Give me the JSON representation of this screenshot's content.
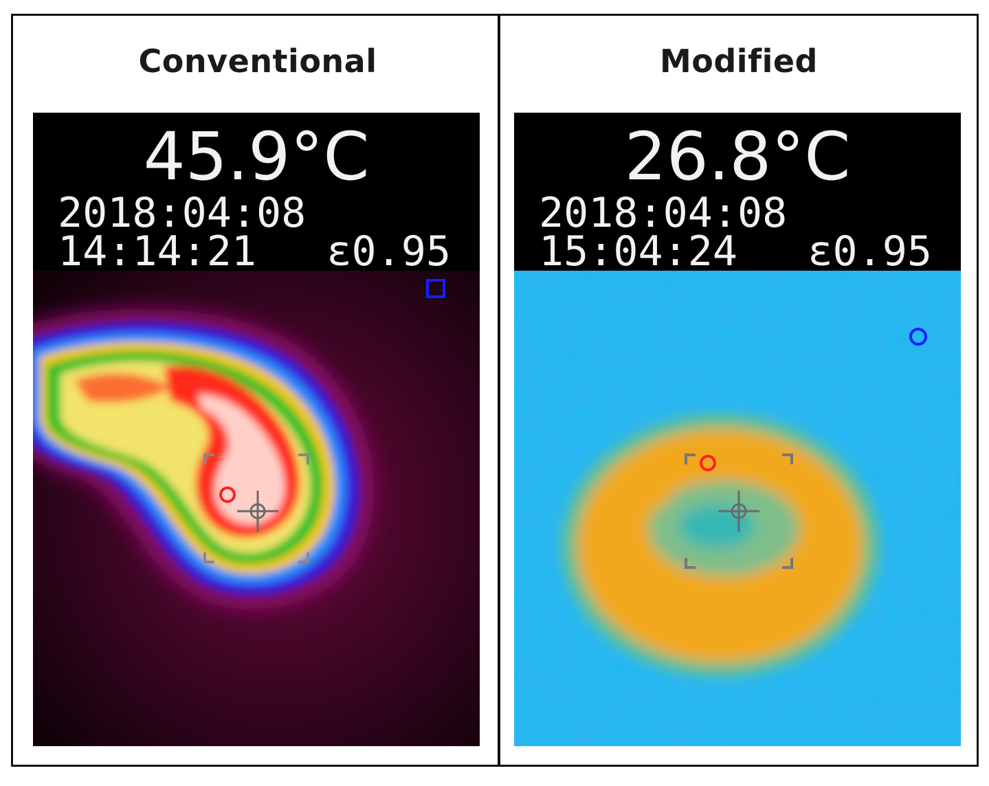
{
  "panels": [
    {
      "title": "Conventional",
      "temperature": "45.9°C",
      "date": "2018:04:08",
      "time": "14:14:21",
      "emissivity": "ɛ0.95",
      "palette": "ironbow-rainbow"
    },
    {
      "title": "Modified",
      "temperature": "26.8°C",
      "date": "2018:04:08",
      "time": "15:04:24",
      "emissivity": "ɛ0.95",
      "palette": "cyan-orange"
    }
  ],
  "colors": {
    "frame": "#111111",
    "readout_bg": "#000000",
    "readout_text": "#f2f2f2",
    "hot_marker": "#ff2020",
    "cold_marker": "#1020ff"
  },
  "icons": [
    "hot-spot-marker-icon",
    "cold-spot-marker-icon",
    "crosshair-icon",
    "focus-bracket-icon"
  ]
}
